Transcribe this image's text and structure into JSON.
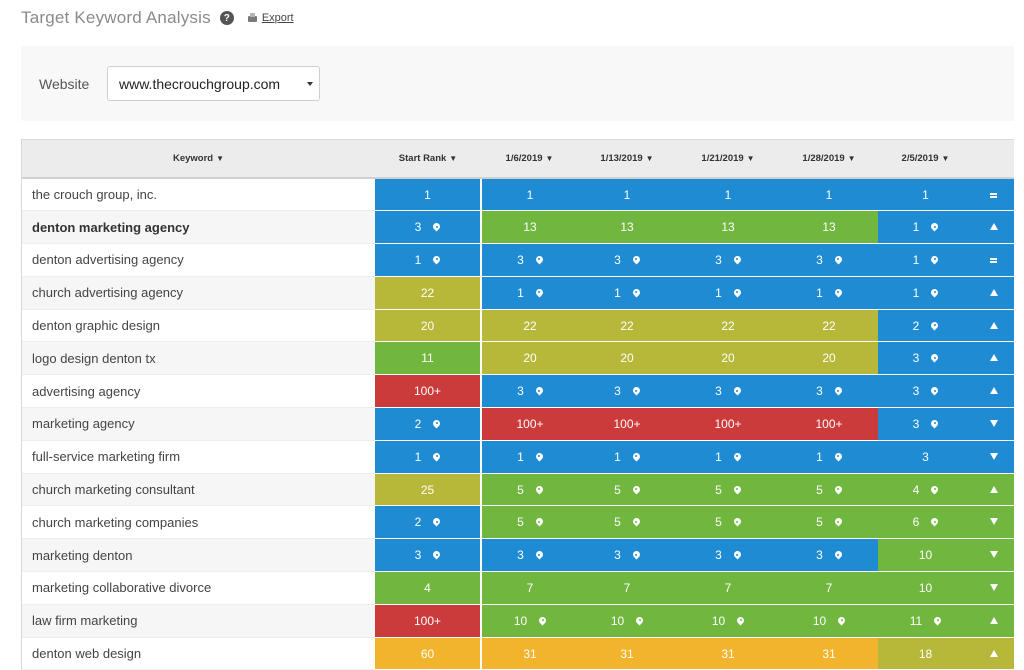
{
  "header": {
    "title": "Target Keyword Analysis",
    "help_glyph": "?",
    "export_label": "Export"
  },
  "filter": {
    "website_label": "Website",
    "website_value": "www.thecrouchgroup.com"
  },
  "table": {
    "columns": [
      "Keyword",
      "Start Rank",
      "1/6/2019",
      "1/13/2019",
      "1/21/2019",
      "1/28/2019",
      "2/5/2019"
    ],
    "sort_glyph": "▼",
    "colors": {
      "blue": "#1f8bd3",
      "green": "#71b73f",
      "olive": "#b7b83a",
      "red": "#cc3b3b",
      "orange": "#f2b42d"
    },
    "rows": [
      {
        "keyword": "the crouch group, inc.",
        "bold": false,
        "trend": "equal",
        "cells": [
          {
            "v": "1",
            "c": "blue",
            "pin": false
          },
          {
            "v": "1",
            "c": "blue",
            "pin": false
          },
          {
            "v": "1",
            "c": "blue",
            "pin": false
          },
          {
            "v": "1",
            "c": "blue",
            "pin": false
          },
          {
            "v": "1",
            "c": "blue",
            "pin": false
          },
          {
            "v": "1",
            "c": "blue",
            "pin": false
          }
        ]
      },
      {
        "keyword": "denton marketing agency",
        "bold": true,
        "trend": "up",
        "cells": [
          {
            "v": "3",
            "c": "blue",
            "pin": true
          },
          {
            "v": "13",
            "c": "green",
            "pin": false
          },
          {
            "v": "13",
            "c": "green",
            "pin": false
          },
          {
            "v": "13",
            "c": "green",
            "pin": false
          },
          {
            "v": "13",
            "c": "green",
            "pin": false
          },
          {
            "v": "1",
            "c": "blue",
            "pin": true
          }
        ]
      },
      {
        "keyword": "denton advertising agency",
        "bold": false,
        "trend": "equal",
        "cells": [
          {
            "v": "1",
            "c": "blue",
            "pin": true
          },
          {
            "v": "3",
            "c": "blue",
            "pin": true
          },
          {
            "v": "3",
            "c": "blue",
            "pin": true
          },
          {
            "v": "3",
            "c": "blue",
            "pin": true
          },
          {
            "v": "3",
            "c": "blue",
            "pin": true
          },
          {
            "v": "1",
            "c": "blue",
            "pin": true
          }
        ]
      },
      {
        "keyword": "church advertising agency",
        "bold": false,
        "trend": "up",
        "cells": [
          {
            "v": "22",
            "c": "olive",
            "pin": false
          },
          {
            "v": "1",
            "c": "blue",
            "pin": true
          },
          {
            "v": "1",
            "c": "blue",
            "pin": true
          },
          {
            "v": "1",
            "c": "blue",
            "pin": true
          },
          {
            "v": "1",
            "c": "blue",
            "pin": true
          },
          {
            "v": "1",
            "c": "blue",
            "pin": true
          }
        ]
      },
      {
        "keyword": "denton graphic design",
        "bold": false,
        "trend": "up",
        "cells": [
          {
            "v": "20",
            "c": "olive",
            "pin": false
          },
          {
            "v": "22",
            "c": "olive",
            "pin": false
          },
          {
            "v": "22",
            "c": "olive",
            "pin": false
          },
          {
            "v": "22",
            "c": "olive",
            "pin": false
          },
          {
            "v": "22",
            "c": "olive",
            "pin": false
          },
          {
            "v": "2",
            "c": "blue",
            "pin": true
          }
        ]
      },
      {
        "keyword": "logo design denton tx",
        "bold": false,
        "trend": "up",
        "cells": [
          {
            "v": "11",
            "c": "green",
            "pin": false
          },
          {
            "v": "20",
            "c": "olive",
            "pin": false
          },
          {
            "v": "20",
            "c": "olive",
            "pin": false
          },
          {
            "v": "20",
            "c": "olive",
            "pin": false
          },
          {
            "v": "20",
            "c": "olive",
            "pin": false
          },
          {
            "v": "3",
            "c": "blue",
            "pin": true
          }
        ]
      },
      {
        "keyword": "advertising agency",
        "bold": false,
        "trend": "up",
        "cells": [
          {
            "v": "100+",
            "c": "red",
            "pin": false
          },
          {
            "v": "3",
            "c": "blue",
            "pin": true
          },
          {
            "v": "3",
            "c": "blue",
            "pin": true
          },
          {
            "v": "3",
            "c": "blue",
            "pin": true
          },
          {
            "v": "3",
            "c": "blue",
            "pin": true
          },
          {
            "v": "3",
            "c": "blue",
            "pin": true
          }
        ]
      },
      {
        "keyword": "marketing agency",
        "bold": false,
        "trend": "down",
        "cells": [
          {
            "v": "2",
            "c": "blue",
            "pin": true
          },
          {
            "v": "100+",
            "c": "red",
            "pin": false
          },
          {
            "v": "100+",
            "c": "red",
            "pin": false
          },
          {
            "v": "100+",
            "c": "red",
            "pin": false
          },
          {
            "v": "100+",
            "c": "red",
            "pin": false
          },
          {
            "v": "3",
            "c": "blue",
            "pin": true
          }
        ]
      },
      {
        "keyword": "full-service marketing firm",
        "bold": false,
        "trend": "down",
        "cells": [
          {
            "v": "1",
            "c": "blue",
            "pin": true
          },
          {
            "v": "1",
            "c": "blue",
            "pin": true
          },
          {
            "v": "1",
            "c": "blue",
            "pin": true
          },
          {
            "v": "1",
            "c": "blue",
            "pin": true
          },
          {
            "v": "1",
            "c": "blue",
            "pin": true
          },
          {
            "v": "3",
            "c": "blue",
            "pin": false
          }
        ]
      },
      {
        "keyword": "church marketing consultant",
        "bold": false,
        "trend": "up",
        "cells": [
          {
            "v": "25",
            "c": "olive",
            "pin": false
          },
          {
            "v": "5",
            "c": "green",
            "pin": true
          },
          {
            "v": "5",
            "c": "green",
            "pin": true
          },
          {
            "v": "5",
            "c": "green",
            "pin": true
          },
          {
            "v": "5",
            "c": "green",
            "pin": true
          },
          {
            "v": "4",
            "c": "green",
            "pin": true
          }
        ]
      },
      {
        "keyword": "church marketing companies",
        "bold": false,
        "trend": "down",
        "cells": [
          {
            "v": "2",
            "c": "blue",
            "pin": true
          },
          {
            "v": "5",
            "c": "green",
            "pin": true
          },
          {
            "v": "5",
            "c": "green",
            "pin": true
          },
          {
            "v": "5",
            "c": "green",
            "pin": true
          },
          {
            "v": "5",
            "c": "green",
            "pin": true
          },
          {
            "v": "6",
            "c": "green",
            "pin": true
          }
        ]
      },
      {
        "keyword": "marketing denton",
        "bold": false,
        "trend": "down",
        "cells": [
          {
            "v": "3",
            "c": "blue",
            "pin": true
          },
          {
            "v": "3",
            "c": "blue",
            "pin": true
          },
          {
            "v": "3",
            "c": "blue",
            "pin": true
          },
          {
            "v": "3",
            "c": "blue",
            "pin": true
          },
          {
            "v": "3",
            "c": "blue",
            "pin": true
          },
          {
            "v": "10",
            "c": "green",
            "pin": false
          }
        ]
      },
      {
        "keyword": "marketing collaborative divorce",
        "bold": false,
        "trend": "down",
        "cells": [
          {
            "v": "4",
            "c": "green",
            "pin": false
          },
          {
            "v": "7",
            "c": "green",
            "pin": false
          },
          {
            "v": "7",
            "c": "green",
            "pin": false
          },
          {
            "v": "7",
            "c": "green",
            "pin": false
          },
          {
            "v": "7",
            "c": "green",
            "pin": false
          },
          {
            "v": "10",
            "c": "green",
            "pin": false
          }
        ]
      },
      {
        "keyword": "law firm marketing",
        "bold": false,
        "trend": "up",
        "cells": [
          {
            "v": "100+",
            "c": "red",
            "pin": false
          },
          {
            "v": "10",
            "c": "green",
            "pin": true
          },
          {
            "v": "10",
            "c": "green",
            "pin": true
          },
          {
            "v": "10",
            "c": "green",
            "pin": true
          },
          {
            "v": "10",
            "c": "green",
            "pin": true
          },
          {
            "v": "11",
            "c": "green",
            "pin": true
          }
        ]
      },
      {
        "keyword": "denton web design",
        "bold": false,
        "trend": "up",
        "cells": [
          {
            "v": "60",
            "c": "orange",
            "pin": false
          },
          {
            "v": "31",
            "c": "orange",
            "pin": false
          },
          {
            "v": "31",
            "c": "orange",
            "pin": false
          },
          {
            "v": "31",
            "c": "orange",
            "pin": false
          },
          {
            "v": "31",
            "c": "orange",
            "pin": false
          },
          {
            "v": "18",
            "c": "olive",
            "pin": false
          }
        ]
      }
    ]
  }
}
